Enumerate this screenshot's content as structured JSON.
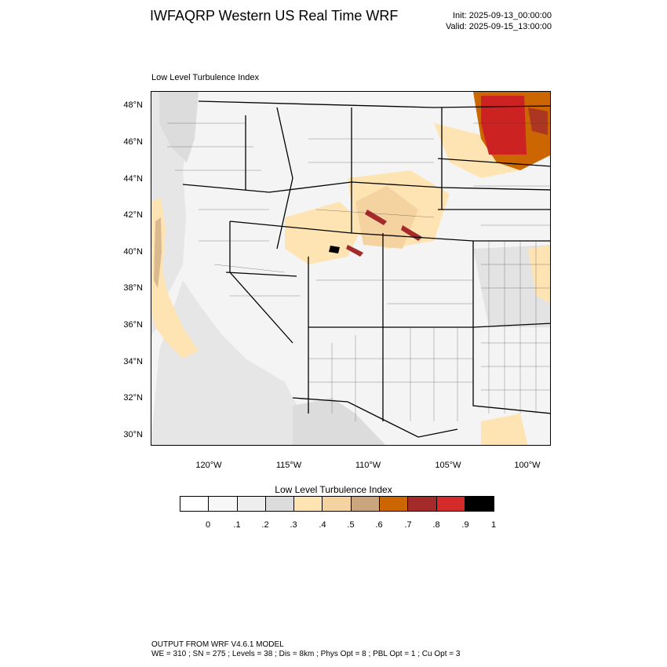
{
  "header": {
    "title": "IWFAQRP Western US Real Time WRF",
    "init": "Init: 2025-09-13_00:00:00",
    "valid": "Valid: 2025-09-15_13:00:00"
  },
  "map": {
    "subtitle": "Low Level Turbulence Index",
    "lat_ticks": [
      "48°N",
      "46°N",
      "44°N",
      "42°N",
      "40°N",
      "38°N",
      "36°N",
      "34°N",
      "32°N",
      "30°N"
    ],
    "lon_ticks": [
      "120°W",
      "115°W",
      "110°W",
      "105°W",
      "100°W"
    ],
    "colors": {
      "ocean": "#eaeaea",
      "land": "#f4f4f4",
      "boundary": "#000000",
      "low": "#ffe4b3",
      "mid": "#f5d3a0",
      "tan": "#c9a67e",
      "orange": "#cc6600",
      "red": "#cc2222",
      "darkred": "#a52a2a"
    }
  },
  "colorbar": {
    "title": "Low Level Turbulence Index",
    "colors": [
      "#ffffff",
      "#f7f7f7",
      "#eeeeee",
      "#dcdcdc",
      "#ffe4b3",
      "#f5d3a0",
      "#c9a67e",
      "#cc6600",
      "#a52a2a",
      "#d42a2a",
      "#000000"
    ],
    "labels": [
      "0",
      ".1",
      ".2",
      ".3",
      ".4",
      ".5",
      ".6",
      ".7",
      ".8",
      ".9",
      "1"
    ]
  },
  "footer": {
    "line1": "OUTPUT FROM WRF V4.6.1 MODEL",
    "line2": "WE = 310 ; SN = 275 ; Levels = 38 ; Dis = 8km ; Phys Opt = 8 ; PBL Opt = 1 ; Cu Opt = 3"
  }
}
